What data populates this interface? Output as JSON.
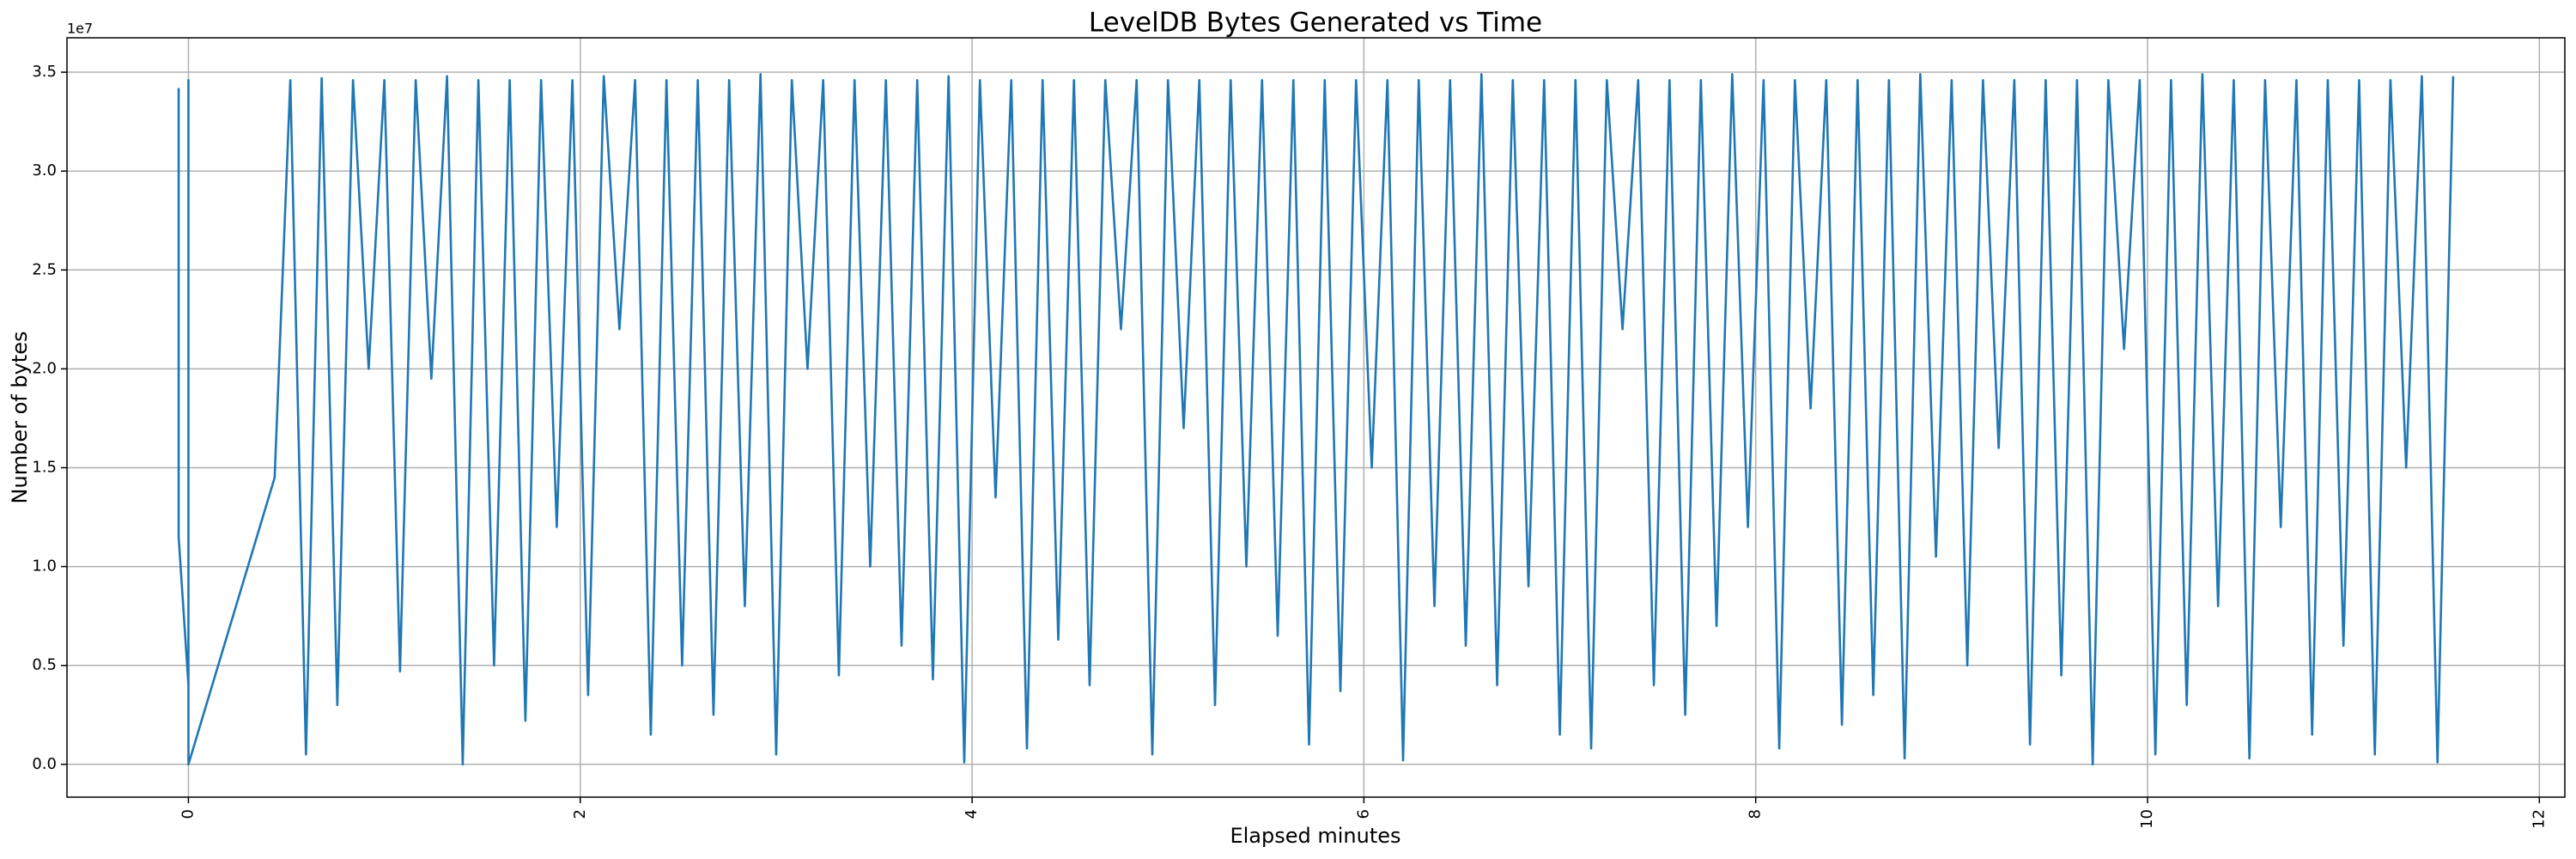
{
  "chart_data": {
    "type": "line",
    "title": "LevelDB Bytes Generated vs Time",
    "x_label": "Elapsed minutes",
    "y_label": "Number of bytes",
    "y_offset_label": "1e7",
    "color": "#1f77b4",
    "grid": true,
    "xlim": [
      -0.62,
      12.13
    ],
    "ylim": [
      -1660000,
      36740000
    ],
    "xticks": [
      0,
      2,
      4,
      6,
      8,
      10,
      12
    ],
    "yticks": [
      {
        "value": 0,
        "label": "0.0"
      },
      {
        "value": 5000000,
        "label": "0.5"
      },
      {
        "value": 10000000,
        "label": "1.0"
      },
      {
        "value": 15000000,
        "label": "1.5"
      },
      {
        "value": 20000000,
        "label": "2.0"
      },
      {
        "value": 25000000,
        "label": "2.5"
      },
      {
        "value": 30000000,
        "label": "3.0"
      },
      {
        "value": 35000000,
        "label": "3.5"
      }
    ],
    "x": [
      -0.05,
      -0.05,
      0,
      0,
      0,
      0.44,
      0.52,
      0.6,
      0.68,
      0.76,
      0.84,
      0.92,
      1.0,
      1.08,
      1.16,
      1.24,
      1.32,
      1.4,
      1.48,
      1.56,
      1.64,
      1.72,
      1.8,
      1.88,
      1.96,
      2.04,
      2.12,
      2.2,
      2.28,
      2.36,
      2.44,
      2.52,
      2.6,
      2.68,
      2.76,
      2.84,
      2.92,
      3.0,
      3.08,
      3.16,
      3.24,
      3.32,
      3.4,
      3.48,
      3.56,
      3.64,
      3.72,
      3.8,
      3.88,
      3.96,
      4.04,
      4.12,
      4.2,
      4.28,
      4.36,
      4.44,
      4.52,
      4.6,
      4.68,
      4.76,
      4.84,
      4.92,
      5.0,
      5.08,
      5.16,
      5.24,
      5.32,
      5.4,
      5.48,
      5.56,
      5.64,
      5.72,
      5.8,
      5.88,
      5.96,
      6.04,
      6.12,
      6.2,
      6.28,
      6.36,
      6.44,
      6.52,
      6.6,
      6.68,
      6.76,
      6.84,
      6.92,
      7.0,
      7.08,
      7.16,
      7.24,
      7.32,
      7.4,
      7.48,
      7.56,
      7.64,
      7.72,
      7.8,
      7.88,
      7.96,
      8.04,
      8.12,
      8.2,
      8.28,
      8.36,
      8.44,
      8.52,
      8.6,
      8.68,
      8.76,
      8.84,
      8.92,
      9.0,
      9.08,
      9.16,
      9.24,
      9.32,
      9.4,
      9.48,
      9.56,
      9.64,
      9.72,
      9.8,
      9.88,
      9.96,
      10.04,
      10.12,
      10.2,
      10.28,
      10.36,
      10.44,
      10.52,
      10.6,
      10.68,
      10.76,
      10.84,
      10.92,
      11.0,
      11.08,
      11.16,
      11.24,
      11.32,
      11.4,
      11.48,
      11.56
    ],
    "values": [
      34200000,
      11500000,
      4000000,
      34600000,
      0,
      14500000,
      34600000,
      500000,
      34700000,
      3000000,
      34600000,
      20000000,
      34600000,
      4700000,
      34600000,
      19500000,
      34800000,
      0,
      34600000,
      5000000,
      34600000,
      2200000,
      34600000,
      12000000,
      34600000,
      3500000,
      34800000,
      22000000,
      34600000,
      1500000,
      34600000,
      5000000,
      34600000,
      2500000,
      34600000,
      8000000,
      34900000,
      500000,
      34600000,
      20000000,
      34600000,
      4500000,
      34600000,
      10000000,
      34600000,
      6000000,
      34600000,
      4300000,
      34800000,
      100000,
      34600000,
      13500000,
      34600000,
      800000,
      34600000,
      6300000,
      34600000,
      4000000,
      34600000,
      22000000,
      34600000,
      500000,
      34600000,
      17000000,
      34600000,
      3000000,
      34600000,
      10000000,
      34600000,
      6500000,
      34600000,
      1000000,
      34600000,
      3700000,
      34600000,
      15000000,
      34600000,
      200000,
      34600000,
      8000000,
      34600000,
      6000000,
      34900000,
      4000000,
      34600000,
      9000000,
      34600000,
      1500000,
      34600000,
      800000,
      34600000,
      22000000,
      34600000,
      4000000,
      34600000,
      2500000,
      34600000,
      7000000,
      34900000,
      12000000,
      34600000,
      800000,
      34600000,
      18000000,
      34600000,
      2000000,
      34600000,
      3500000,
      34600000,
      300000,
      34900000,
      10500000,
      34600000,
      5000000,
      34600000,
      16000000,
      34600000,
      1000000,
      34600000,
      4500000,
      34600000,
      0,
      34600000,
      21000000,
      34600000,
      500000,
      34600000,
      3000000,
      34900000,
      8000000,
      34600000,
      300000,
      34600000,
      12000000,
      34600000,
      1500000,
      34600000,
      6000000,
      34600000,
      500000,
      34600000,
      15000000,
      34800000,
      100000,
      34800000
    ]
  }
}
